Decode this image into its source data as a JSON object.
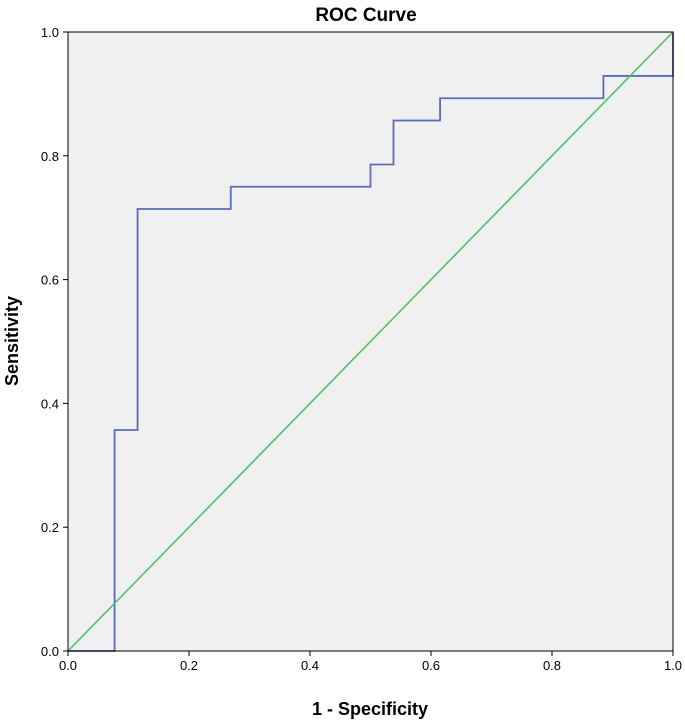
{
  "chart_data": {
    "type": "line",
    "title": "ROC Curve",
    "xlabel": "1 - Specificity",
    "ylabel": "Sensitivity",
    "xlim": [
      0.0,
      1.0
    ],
    "ylim": [
      0.0,
      1.0
    ],
    "x_ticks": [
      "0.0",
      "0.2",
      "0.4",
      "0.6",
      "0.8",
      "1.0"
    ],
    "y_ticks": [
      "0.0",
      "0.2",
      "0.4",
      "0.6",
      "0.8",
      "1.0"
    ],
    "grid": false,
    "legend": "none",
    "plot_background": "#f0f0f0",
    "series": [
      {
        "style": "step",
        "color": "#5b6bb6",
        "x": [
          0.0,
          0.077,
          0.077,
          0.115,
          0.115,
          0.269,
          0.269,
          0.5,
          0.5,
          0.538,
          0.538,
          0.615,
          0.615,
          0.885,
          0.885,
          1.0,
          1.0
        ],
        "y": [
          0.0,
          0.0,
          0.357,
          0.357,
          0.714,
          0.714,
          0.75,
          0.75,
          0.786,
          0.786,
          0.857,
          0.857,
          0.893,
          0.893,
          0.929,
          0.929,
          1.0
        ]
      },
      {
        "style": "reference",
        "color": "#4cc36a",
        "x": [
          0.0,
          1.0
        ],
        "y": [
          0.0,
          1.0
        ]
      }
    ]
  }
}
